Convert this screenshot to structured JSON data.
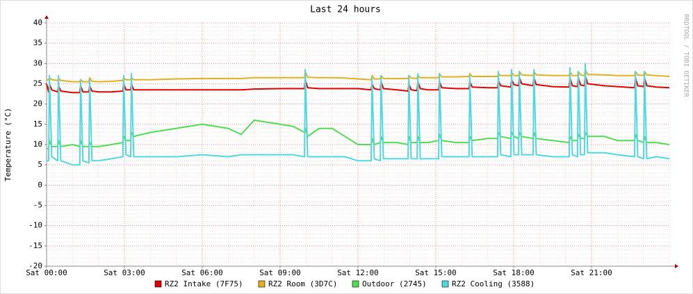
{
  "chart_data": {
    "type": "line",
    "title": "Last 24 hours",
    "y_label": "Temperature (°C)",
    "side_label": "RRDTOOL / TOBI OETIKER",
    "x": [
      0,
      0.08,
      0.11,
      0.2,
      0.43,
      0.46,
      0.55,
      1,
      1.28,
      1.31,
      1.4,
      1.63,
      1.66,
      1.75,
      2,
      2.5,
      2.94,
      2.97,
      3.06,
      3.24,
      3.27,
      3.36,
      4,
      5,
      6,
      7,
      7.5,
      8,
      9,
      9.5,
      9.94,
      9.97,
      10.06,
      10.5,
      11,
      11.5,
      12,
      12.51,
      12.54,
      12.63,
      12.86,
      12.89,
      12.98,
      13.5,
      13.93,
      13.96,
      14.05,
      14.28,
      14.31,
      14.4,
      14.7,
      15.11,
      15.14,
      15.23,
      15.8,
      16.28,
      16.31,
      16.4,
      17,
      17.38,
      17.41,
      17.5,
      17.89,
      17.92,
      18.01,
      18.19,
      18.22,
      18.31,
      18.75,
      18.78,
      18.87,
      19.5,
      20.14,
      20.17,
      20.26,
      20.46,
      20.49,
      20.58,
      20.73,
      20.76,
      20.85,
      21.5,
      22,
      22.66,
      22.69,
      22.78,
      23.01,
      23.04,
      23.13,
      23.5,
      24
    ],
    "series": [
      {
        "name": "RZ2 Intake (7F75)",
        "color": "#e00000",
        "values": [
          25,
          23,
          25,
          23.5,
          23,
          24.5,
          23.2,
          22.8,
          22.8,
          24.5,
          23,
          23,
          24.5,
          23.2,
          23,
          23,
          23.2,
          25,
          23.5,
          23.5,
          25,
          23.5,
          23.5,
          23.5,
          23.5,
          23.5,
          23.5,
          23.7,
          23.8,
          23.8,
          23.8,
          26,
          24,
          23.8,
          23.8,
          23.8,
          23.8,
          23.5,
          25,
          23.8,
          23.5,
          25.5,
          23.8,
          23.5,
          23.2,
          25,
          23.5,
          23.3,
          25.5,
          23.8,
          23.5,
          23.5,
          25.5,
          24,
          23.8,
          23.8,
          25.5,
          24.2,
          24,
          24,
          25.8,
          24.5,
          24.2,
          26,
          24.8,
          24.5,
          26.5,
          25,
          24.5,
          26.5,
          24.8,
          24.3,
          24.2,
          26.5,
          24.5,
          24.3,
          26.5,
          24.7,
          24.5,
          27,
          25,
          24.5,
          24.3,
          24,
          26.5,
          24.5,
          24.3,
          26.5,
          24.5,
          24.2,
          24
        ]
      },
      {
        "name": "RZ2 Room (3D7C)",
        "color": "#e0b020",
        "values": [
          26,
          26,
          26.5,
          26,
          25.8,
          26.3,
          25.8,
          25.5,
          25.5,
          26,
          25.5,
          25.5,
          26.5,
          25.6,
          25.5,
          25.6,
          25.8,
          26.5,
          26,
          26,
          26.5,
          26,
          26,
          26.2,
          26.3,
          26.3,
          26.3,
          26.5,
          26.5,
          26.5,
          26.5,
          28,
          26.6,
          26.5,
          26.5,
          26.4,
          26.2,
          26,
          27,
          26.2,
          26.2,
          27,
          26.3,
          26.3,
          26.3,
          27,
          26.4,
          26.3,
          27,
          26.5,
          26.5,
          26.5,
          27.5,
          26.7,
          26.7,
          26.8,
          27.5,
          26.8,
          26.8,
          26.8,
          27.5,
          27,
          27,
          27.8,
          27,
          27,
          28,
          27.2,
          27,
          28,
          27.2,
          27,
          27,
          28,
          27,
          27,
          28,
          27.2,
          27,
          28.5,
          27.3,
          27.2,
          27,
          27,
          28,
          27.2,
          27,
          28,
          27.2,
          27,
          26.8
        ]
      },
      {
        "name": "Outdoor (2745)",
        "color": "#50dc50",
        "values": [
          9,
          9,
          11,
          9.5,
          9.5,
          11,
          9.5,
          10,
          9.5,
          11,
          9.5,
          9.5,
          10.5,
          9.5,
          9.5,
          10,
          10.5,
          12,
          11,
          11,
          13,
          12,
          13,
          14,
          15,
          14,
          12.5,
          16,
          15,
          14.5,
          13,
          14,
          12,
          14,
          14,
          12,
          10,
          10,
          11.5,
          10,
          10.5,
          12,
          10.5,
          10.5,
          10,
          12,
          10.5,
          10.5,
          12,
          10.5,
          10.5,
          11,
          12.5,
          11,
          10.5,
          10.5,
          12,
          11,
          11.5,
          11.5,
          13,
          12,
          11.5,
          13,
          12,
          11.5,
          13,
          12,
          11.5,
          13,
          11.5,
          11,
          10.5,
          12,
          11,
          11,
          12.5,
          11.5,
          11.5,
          13,
          12,
          12,
          11,
          11,
          12.5,
          11,
          10.5,
          12,
          10.5,
          10.5,
          10
        ]
      },
      {
        "name": "RZ2 Cooling (3588)",
        "color": "#50d8e0",
        "values": [
          6,
          6,
          27,
          7,
          6,
          27,
          6,
          5,
          5,
          26,
          6,
          5.5,
          26,
          6,
          6,
          6.5,
          7,
          27,
          7.5,
          7,
          27.5,
          7,
          7,
          7,
          7.5,
          7,
          7.5,
          7.5,
          7.5,
          7.5,
          7,
          28.5,
          7,
          7,
          7,
          7,
          6,
          6,
          26.5,
          6.5,
          6,
          27,
          6.5,
          6.5,
          6.5,
          27,
          6.5,
          6.5,
          27.5,
          6.5,
          6.5,
          6.5,
          27.5,
          7,
          7,
          7,
          27,
          7,
          7,
          7,
          28,
          7.5,
          7,
          28.5,
          7.5,
          7.5,
          28,
          7.5,
          7.5,
          28.5,
          7.5,
          7,
          7,
          29,
          7.5,
          7,
          28,
          7.5,
          7.5,
          30,
          8,
          8,
          7.5,
          7,
          28,
          7,
          6.5,
          28,
          6.5,
          7,
          6.5
        ]
      }
    ],
    "xlim": [
      0,
      24
    ],
    "xticks": [
      {
        "value": 0,
        "label": "Sat 00:00"
      },
      {
        "value": 3,
        "label": "Sat 03:00"
      },
      {
        "value": 6,
        "label": "Sat 06:00"
      },
      {
        "value": 9,
        "label": "Sat 09:00"
      },
      {
        "value": 12,
        "label": "Sat 12:00"
      },
      {
        "value": 15,
        "label": "Sat 15:00"
      },
      {
        "value": 18,
        "label": "Sat 18:00"
      },
      {
        "value": 21,
        "label": "Sat 21:00"
      }
    ],
    "ylim": [
      -20,
      40
    ],
    "yticks": [
      -20,
      -15,
      -10,
      -5,
      0,
      5,
      10,
      15,
      20,
      25,
      30,
      35,
      40
    ],
    "grid": true
  }
}
